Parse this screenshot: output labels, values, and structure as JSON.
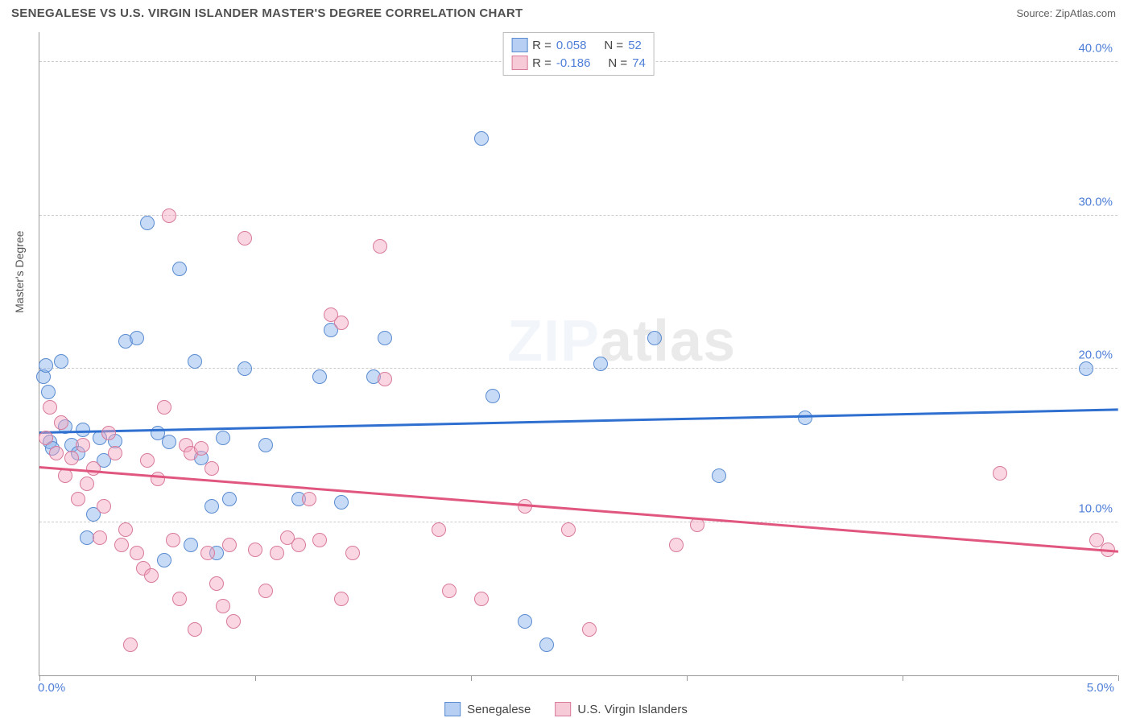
{
  "title": "SENEGALESE VS U.S. VIRGIN ISLANDER MASTER'S DEGREE CORRELATION CHART",
  "source_label": "Source: ",
  "source_name": "ZipAtlas.com",
  "y_axis_title": "Master's Degree",
  "watermark_a": "ZIP",
  "watermark_b": "atlas",
  "chart": {
    "type": "scatter",
    "xlim": [
      0,
      5
    ],
    "ylim": [
      0,
      42
    ],
    "x_ticks": [
      0,
      1,
      2,
      3,
      4,
      5
    ],
    "x_tick_labels": {
      "0": "0.0%",
      "5": "5.0%"
    },
    "y_gridlines": [
      10,
      20,
      30,
      40
    ],
    "y_tick_labels": {
      "10": "10.0%",
      "20": "20.0%",
      "30": "30.0%",
      "40": "40.0%"
    },
    "marker_radius": 9,
    "background_color": "#ffffff",
    "grid_color": "#cccccc",
    "axis_color": "#999999",
    "label_color": "#4f7fd8",
    "series": [
      {
        "name": "Senegalese",
        "color_fill": "rgba(130,175,235,0.45)",
        "color_stroke": "#5a8bd0",
        "trend_color": "#2f6fd0",
        "R": "0.058",
        "N": "52",
        "trend": {
          "x0": 0,
          "y0": 15.8,
          "x1": 5,
          "y1": 17.3
        },
        "points": [
          [
            0.02,
            19.5
          ],
          [
            0.03,
            20.2
          ],
          [
            0.04,
            18.5
          ],
          [
            0.05,
            15.2
          ],
          [
            0.06,
            14.8
          ],
          [
            0.1,
            20.5
          ],
          [
            0.12,
            16.2
          ],
          [
            0.15,
            15.0
          ],
          [
            0.18,
            14.5
          ],
          [
            0.2,
            16.0
          ],
          [
            0.22,
            9.0
          ],
          [
            0.25,
            10.5
          ],
          [
            0.28,
            15.5
          ],
          [
            0.3,
            14.0
          ],
          [
            0.35,
            15.3
          ],
          [
            0.4,
            21.8
          ],
          [
            0.45,
            22.0
          ],
          [
            0.5,
            29.5
          ],
          [
            0.55,
            15.8
          ],
          [
            0.58,
            7.5
          ],
          [
            0.6,
            15.2
          ],
          [
            0.65,
            26.5
          ],
          [
            0.7,
            8.5
          ],
          [
            0.72,
            20.5
          ],
          [
            0.75,
            14.2
          ],
          [
            0.8,
            11.0
          ],
          [
            0.82,
            8.0
          ],
          [
            0.85,
            15.5
          ],
          [
            0.88,
            11.5
          ],
          [
            0.95,
            20.0
          ],
          [
            1.05,
            15.0
          ],
          [
            1.2,
            11.5
          ],
          [
            1.3,
            19.5
          ],
          [
            1.35,
            22.5
          ],
          [
            1.4,
            11.3
          ],
          [
            1.55,
            19.5
          ],
          [
            1.6,
            22.0
          ],
          [
            2.05,
            35.0
          ],
          [
            2.1,
            18.2
          ],
          [
            2.25,
            3.5
          ],
          [
            2.35,
            2.0
          ],
          [
            2.6,
            20.3
          ],
          [
            2.85,
            22.0
          ],
          [
            3.15,
            13.0
          ],
          [
            3.55,
            16.8
          ],
          [
            4.85,
            20.0
          ]
        ]
      },
      {
        "name": "U.S. Virgin Islanders",
        "color_fill": "rgba(245,165,190,0.45)",
        "color_stroke": "#d87a9a",
        "trend_color": "#e0567f",
        "R": "-0.186",
        "N": "74",
        "trend": {
          "x0": 0,
          "y0": 13.5,
          "x1": 5,
          "y1": 8.0
        },
        "points": [
          [
            0.03,
            15.5
          ],
          [
            0.05,
            17.5
          ],
          [
            0.08,
            14.5
          ],
          [
            0.1,
            16.5
          ],
          [
            0.12,
            13.0
          ],
          [
            0.15,
            14.2
          ],
          [
            0.18,
            11.5
          ],
          [
            0.2,
            15.0
          ],
          [
            0.22,
            12.5
          ],
          [
            0.25,
            13.5
          ],
          [
            0.28,
            9.0
          ],
          [
            0.3,
            11.0
          ],
          [
            0.32,
            15.8
          ],
          [
            0.35,
            14.5
          ],
          [
            0.38,
            8.5
          ],
          [
            0.4,
            9.5
          ],
          [
            0.42,
            2.0
          ],
          [
            0.45,
            8.0
          ],
          [
            0.48,
            7.0
          ],
          [
            0.5,
            14.0
          ],
          [
            0.52,
            6.5
          ],
          [
            0.55,
            12.8
          ],
          [
            0.58,
            17.5
          ],
          [
            0.6,
            30.0
          ],
          [
            0.62,
            8.8
          ],
          [
            0.65,
            5.0
          ],
          [
            0.68,
            15.0
          ],
          [
            0.7,
            14.5
          ],
          [
            0.72,
            3.0
          ],
          [
            0.75,
            14.8
          ],
          [
            0.78,
            8.0
          ],
          [
            0.8,
            13.5
          ],
          [
            0.82,
            6.0
          ],
          [
            0.85,
            4.5
          ],
          [
            0.88,
            8.5
          ],
          [
            0.9,
            3.5
          ],
          [
            0.95,
            28.5
          ],
          [
            1.0,
            8.2
          ],
          [
            1.05,
            5.5
          ],
          [
            1.1,
            8.0
          ],
          [
            1.15,
            9.0
          ],
          [
            1.2,
            8.5
          ],
          [
            1.25,
            11.5
          ],
          [
            1.3,
            8.8
          ],
          [
            1.35,
            23.5
          ],
          [
            1.4,
            5.0
          ],
          [
            1.4,
            23.0
          ],
          [
            1.45,
            8.0
          ],
          [
            1.58,
            28.0
          ],
          [
            1.6,
            19.3
          ],
          [
            1.85,
            9.5
          ],
          [
            1.9,
            5.5
          ],
          [
            2.05,
            5.0
          ],
          [
            2.25,
            11.0
          ],
          [
            2.45,
            9.5
          ],
          [
            2.55,
            3.0
          ],
          [
            2.95,
            8.5
          ],
          [
            3.05,
            9.8
          ],
          [
            4.45,
            13.2
          ],
          [
            4.9,
            8.8
          ],
          [
            4.95,
            8.2
          ]
        ]
      }
    ]
  },
  "legend_labels": {
    "R_label": "R  = ",
    "N_label": "N  = "
  }
}
